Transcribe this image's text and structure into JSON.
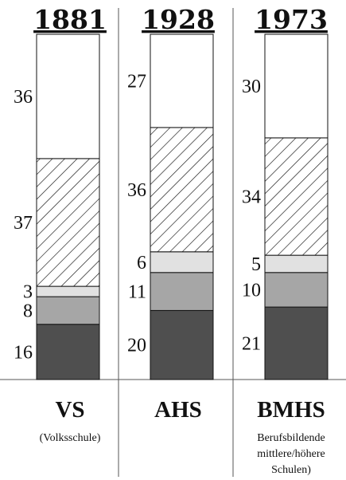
{
  "chart_data": {
    "type": "bar",
    "stacked": true,
    "normalized": true,
    "legend": "none",
    "grid": false,
    "ylim": [
      0,
      100
    ],
    "categories": [
      "1881",
      "1928",
      "1973"
    ],
    "category_labels": [
      {
        "title": "VS",
        "subtitle": [
          "(Volksschule)"
        ]
      },
      {
        "title": "AHS",
        "subtitle": []
      },
      {
        "title": "BMHS",
        "subtitle": [
          "Berufsbildende",
          "mittlere/höhere",
          "Schulen)"
        ]
      }
    ],
    "series": [
      {
        "values": [
          16,
          20,
          21
        ],
        "color": "#4f4f4f",
        "pattern": "solid"
      },
      {
        "values": [
          8,
          11,
          10
        ],
        "color": "#a6a6a6",
        "pattern": "solid"
      },
      {
        "values": [
          3,
          6,
          5
        ],
        "color": "#e1e1e1",
        "pattern": "solid"
      },
      {
        "values": [
          37,
          36,
          34
        ],
        "color": "#ffffff",
        "pattern": "diagonal-hatch"
      },
      {
        "values": [
          36,
          27,
          30
        ],
        "color": "#ffffff",
        "pattern": "solid"
      }
    ],
    "colors": {
      "outline": "#111111",
      "hatch": "#111111",
      "divider": "#555555"
    }
  }
}
